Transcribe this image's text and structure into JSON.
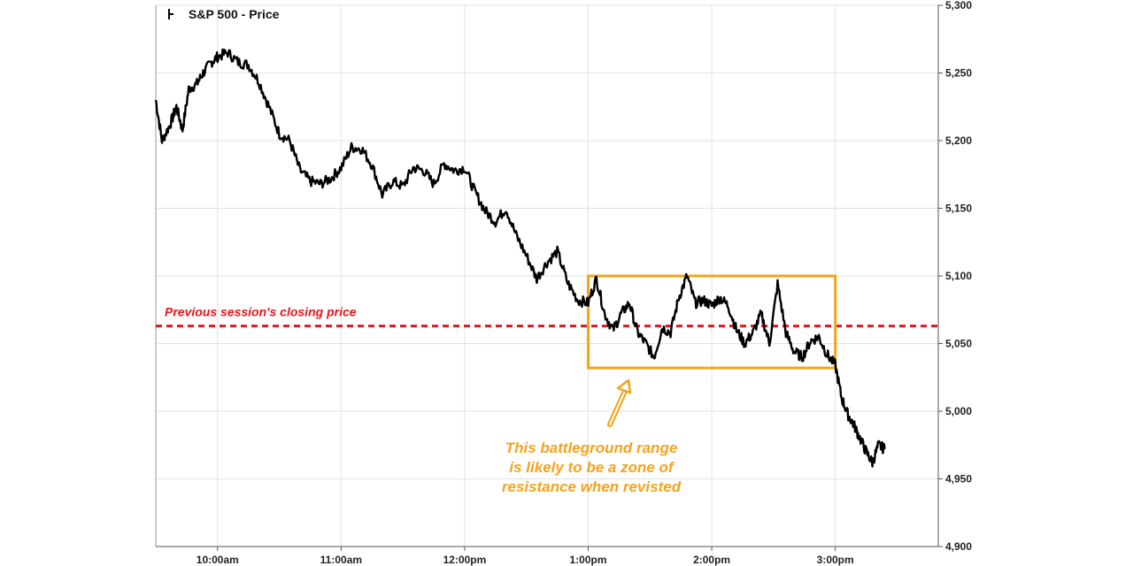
{
  "chart_data": {
    "type": "line",
    "legend": {
      "label": "S&P 500 - Price",
      "placement": "top-left"
    },
    "xlim": [
      "9:30am",
      "3:50pm"
    ],
    "ylim": [
      4900,
      5300
    ],
    "y_ticks": [
      4900,
      4950,
      5000,
      5050,
      5100,
      5150,
      5200,
      5250,
      5300
    ],
    "y_tick_labels": [
      "4,900",
      "4,950",
      "5,000",
      "5,050",
      "5,100",
      "5,150",
      "5,200",
      "5,250",
      "5,300"
    ],
    "x_ticks": [
      "10:00am",
      "11:00am",
      "12:00pm",
      "1:00pm",
      "2:00pm",
      "3:00pm"
    ],
    "grid": {
      "vertical": true,
      "horizontal": true
    },
    "series": [
      {
        "color": "#000000",
        "x": [
          "9:30am",
          "9:33am",
          "9:37am",
          "9:40am",
          "9:43am",
          "9:46am",
          "9:50am",
          "9:53am",
          "9:57am",
          "10:00am",
          "10:05am",
          "10:10am",
          "10:15am",
          "10:20am",
          "10:25am",
          "10:30am",
          "10:35am",
          "10:40am",
          "10:45am",
          "10:50am",
          "10:55am",
          "11:00am",
          "11:05am",
          "11:10am",
          "11:15am",
          "11:20am",
          "11:25am",
          "11:30am",
          "11:35am",
          "11:40am",
          "11:45am",
          "11:50am",
          "11:55am",
          "12:00pm",
          "12:05pm",
          "12:10pm",
          "12:15pm",
          "12:20pm",
          "12:25pm",
          "12:30pm",
          "12:35pm",
          "12:40pm",
          "12:45pm",
          "12:50pm",
          "12:55pm",
          "1:00pm",
          "1:04pm",
          "1:08pm",
          "1:12pm",
          "1:16pm",
          "1:20pm",
          "1:24pm",
          "1:28pm",
          "1:32pm",
          "1:36pm",
          "1:40pm",
          "1:44pm",
          "1:48pm",
          "1:52pm",
          "1:56pm",
          "2:00pm",
          "2:04pm",
          "2:08pm",
          "2:12pm",
          "2:16pm",
          "2:20pm",
          "2:24pm",
          "2:28pm",
          "2:32pm",
          "2:36pm",
          "2:40pm",
          "2:44pm",
          "2:48pm",
          "2:52pm",
          "2:56pm",
          "3:00pm",
          "3:03pm",
          "3:06pm",
          "3:09pm",
          "3:12pm",
          "3:15pm",
          "3:18pm",
          "3:21pm",
          "3:24pm"
        ],
        "values": [
          5230,
          5200,
          5212,
          5225,
          5208,
          5238,
          5242,
          5250,
          5258,
          5262,
          5265,
          5258,
          5256,
          5244,
          5225,
          5205,
          5200,
          5178,
          5170,
          5168,
          5172,
          5180,
          5195,
          5194,
          5182,
          5160,
          5170,
          5166,
          5180,
          5178,
          5168,
          5183,
          5178,
          5180,
          5162,
          5148,
          5140,
          5150,
          5130,
          5115,
          5098,
          5110,
          5118,
          5095,
          5082,
          5080,
          5098,
          5072,
          5060,
          5072,
          5080,
          5058,
          5050,
          5040,
          5062,
          5058,
          5084,
          5100,
          5080,
          5082,
          5078,
          5084,
          5078,
          5060,
          5050,
          5058,
          5072,
          5050,
          5094,
          5058,
          5044,
          5040,
          5052,
          5055,
          5042,
          5034,
          5010,
          4998,
          4990,
          4980,
          4970,
          4962,
          4975,
          4972
        ]
      }
    ],
    "reference_line": {
      "value": 5063,
      "label": "Previous session's closing price",
      "color": "#e8141c"
    },
    "range_box": {
      "x_start": "1:00pm",
      "x_end": "3:00pm",
      "y_min": 5032,
      "y_max": 5100,
      "color": "#f5a31a"
    },
    "annotation": {
      "lines": [
        "This battleground range",
        "is likely to be a zone of",
        "resistance when revisted"
      ],
      "color": "#f5a31a"
    }
  }
}
